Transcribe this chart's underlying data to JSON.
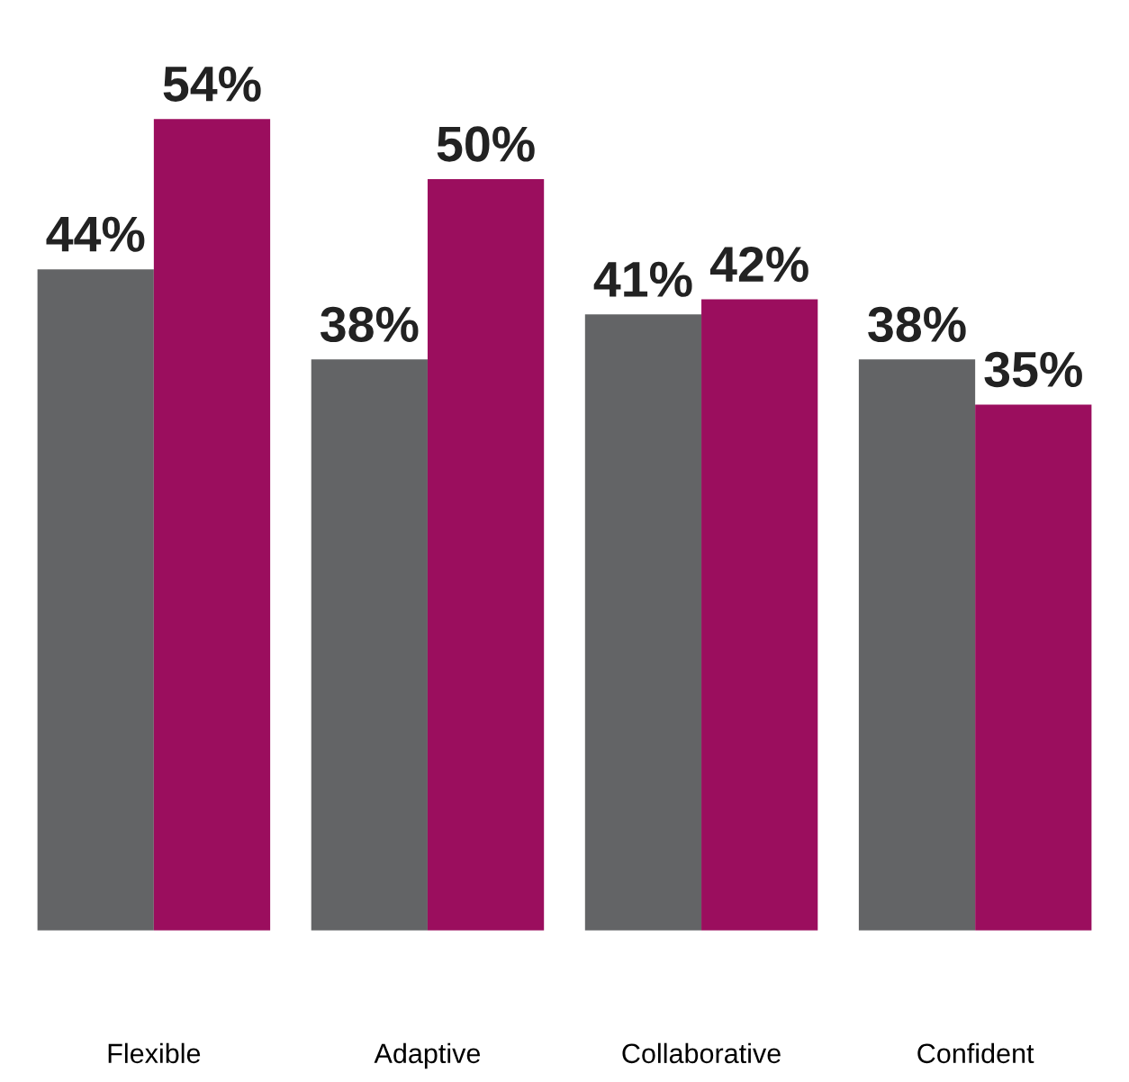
{
  "chart_data": {
    "type": "bar",
    "categories": [
      "Flexible",
      "Adaptive",
      "Collaborative",
      "Confident"
    ],
    "series": [
      {
        "color": "#636466",
        "values": [
          44,
          38,
          41,
          38
        ],
        "value_labels": [
          "44%",
          "38%",
          "41%",
          "38%"
        ]
      },
      {
        "color": "#9b0e5e",
        "values": [
          54,
          50,
          42,
          35
        ],
        "value_labels": [
          "54%",
          "50%",
          "42%",
          "35%"
        ]
      }
    ],
    "tick_labels": "x",
    "grid": false,
    "legend": false
  }
}
